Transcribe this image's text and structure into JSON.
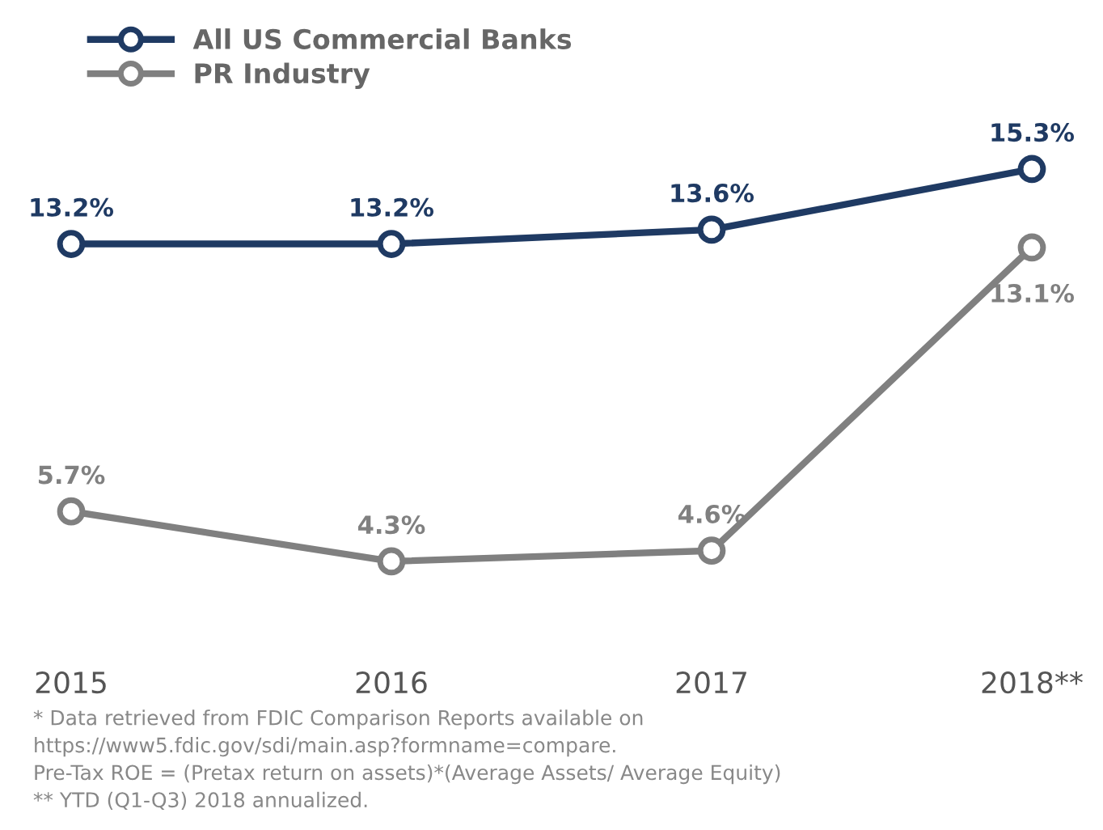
{
  "chart_data": {
    "type": "line",
    "categories": [
      "2015",
      "2016",
      "2017",
      "2018**"
    ],
    "series": [
      {
        "name": "All US Commercial Banks",
        "color": "#1f3a63",
        "values": [
          13.2,
          13.2,
          13.6,
          15.3
        ],
        "value_labels": [
          "13.2%",
          "13.2%",
          "13.6%",
          "15.3%"
        ]
      },
      {
        "name": "PR Industry",
        "color": "#808080",
        "values": [
          5.7,
          4.3,
          4.6,
          13.1
        ],
        "value_labels": [
          "5.7%",
          "4.3%",
          "4.6%",
          "13.1%"
        ]
      }
    ],
    "marker": "circle",
    "line_style": "solid",
    "legend": "top left",
    "grid": false,
    "tick_labels": "x",
    "annotations": [
      "* Data retrieved from FDIC Comparison Reports available on",
      "https://www5.fdic.gov/sdi/main.asp?formname=compare.",
      "Pre-Tax ROE = (Pretax return on assets)*(Average Assets/ Average Equity)",
      "** YTD (Q1-Q3) 2018 annualized."
    ]
  }
}
